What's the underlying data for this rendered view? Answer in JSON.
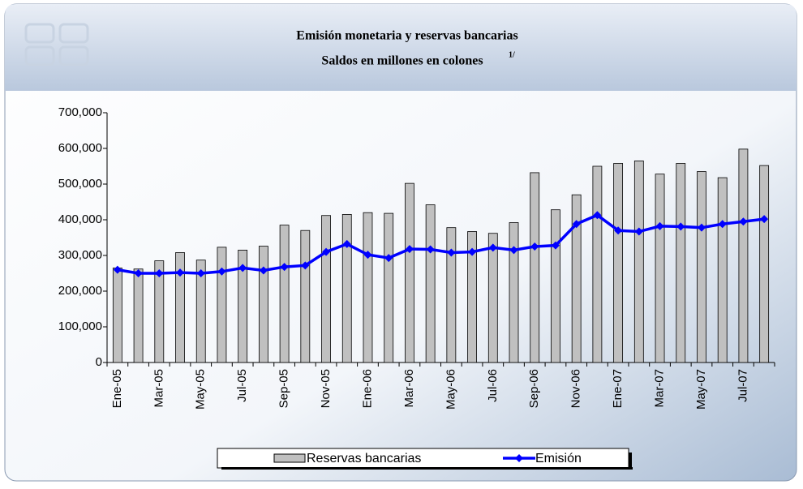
{
  "chart_data": {
    "type": "bar_line",
    "title": "Emisión monetaria y reservas bancarias",
    "subtitle": "Saldos en millones en colones",
    "footnote_marker": "1/",
    "categories": [
      "Ene-05",
      null,
      "Mar-05",
      null,
      "May-05",
      null,
      "Jul-05",
      null,
      "Sep-05",
      null,
      "Nov-05",
      null,
      "Ene-06",
      null,
      "Mar-06",
      null,
      "May-06",
      null,
      "Jul-06",
      null,
      "Sep-06",
      null,
      "Nov-06",
      null,
      "Ene-07",
      null,
      "Mar-07",
      null,
      "May-07",
      null,
      "Jul-07",
      null
    ],
    "series": [
      {
        "name": "Reservas bancarias",
        "type": "bar",
        "color": "#c0c0c0",
        "values": [
          265000,
          262000,
          285000,
          308000,
          287000,
          323000,
          315000,
          326000,
          385000,
          370000,
          412000,
          415000,
          420000,
          418000,
          502000,
          442000,
          378000,
          367000,
          362000,
          392000,
          532000,
          428000,
          470000,
          550000,
          558000,
          565000,
          528000,
          558000,
          535000,
          518000,
          598000,
          552000
        ]
      },
      {
        "name": "Emisión",
        "type": "line",
        "color": "#0000ff",
        "values": [
          260000,
          250000,
          250000,
          252000,
          250000,
          255000,
          265000,
          258000,
          268000,
          272000,
          310000,
          332000,
          302000,
          293000,
          318000,
          317000,
          308000,
          310000,
          322000,
          315000,
          325000,
          328000,
          388000,
          413000,
          370000,
          367000,
          382000,
          381000,
          378000,
          388000,
          395000,
          402000
        ]
      }
    ],
    "ylim": [
      0,
      700000
    ],
    "yticks": [
      0,
      {
        "value": 100000,
        "label": "100,000"
      },
      {
        "value": 200000,
        "label": "200,000"
      },
      {
        "value": 300000,
        "label": "300,000"
      },
      {
        "value": 400000,
        "label": "400,000"
      },
      {
        "value": 500000,
        "label": "500,000"
      },
      {
        "value": 600000,
        "label": "600,000"
      },
      {
        "value": 700000,
        "label": "700,000"
      }
    ],
    "legend": "bottom"
  }
}
